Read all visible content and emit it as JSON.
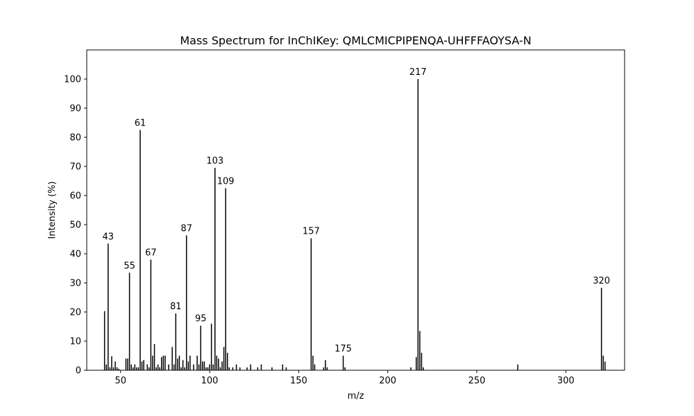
{
  "chart_data": {
    "type": "bar",
    "title": "Mass Spectrum for InChIKey: QMLCMICPIPENQA-UHFFFAOYSA-N",
    "xlabel": "m/z",
    "ylabel": "Intensity (%)",
    "xlim": [
      31,
      333
    ],
    "ylim": [
      0,
      110
    ],
    "xticks": [
      50,
      100,
      150,
      200,
      250,
      300
    ],
    "yticks": [
      0,
      10,
      20,
      30,
      40,
      50,
      60,
      70,
      80,
      90,
      100
    ],
    "grid": false,
    "bar_color": "#000000",
    "peaks": [
      {
        "mz": 41,
        "intensity": 20.3
      },
      {
        "mz": 42,
        "intensity": 2.0
      },
      {
        "mz": 43,
        "intensity": 43.5,
        "label": "43"
      },
      {
        "mz": 44,
        "intensity": 1.0
      },
      {
        "mz": 45,
        "intensity": 4.8
      },
      {
        "mz": 46,
        "intensity": 1.0
      },
      {
        "mz": 47,
        "intensity": 3.0
      },
      {
        "mz": 48,
        "intensity": 1.0
      },
      {
        "mz": 49,
        "intensity": 0.5
      },
      {
        "mz": 53,
        "intensity": 4.0
      },
      {
        "mz": 54,
        "intensity": 4.0
      },
      {
        "mz": 55,
        "intensity": 33.5,
        "label": "55"
      },
      {
        "mz": 56,
        "intensity": 2.0
      },
      {
        "mz": 57,
        "intensity": 1.0
      },
      {
        "mz": 58,
        "intensity": 2.0
      },
      {
        "mz": 59,
        "intensity": 1.0
      },
      {
        "mz": 60,
        "intensity": 1.0
      },
      {
        "mz": 61,
        "intensity": 82.5,
        "label": "61"
      },
      {
        "mz": 62,
        "intensity": 3.0
      },
      {
        "mz": 63,
        "intensity": 3.5
      },
      {
        "mz": 65,
        "intensity": 2.0
      },
      {
        "mz": 66,
        "intensity": 1.0
      },
      {
        "mz": 67,
        "intensity": 38.0,
        "label": "67"
      },
      {
        "mz": 68,
        "intensity": 5.0
      },
      {
        "mz": 69,
        "intensity": 9.0
      },
      {
        "mz": 70,
        "intensity": 1.0
      },
      {
        "mz": 71,
        "intensity": 2.0
      },
      {
        "mz": 72,
        "intensity": 1.0
      },
      {
        "mz": 73,
        "intensity": 4.5
      },
      {
        "mz": 74,
        "intensity": 5.0
      },
      {
        "mz": 75,
        "intensity": 5.0
      },
      {
        "mz": 77,
        "intensity": 2.0
      },
      {
        "mz": 79,
        "intensity": 8.0
      },
      {
        "mz": 80,
        "intensity": 2.0
      },
      {
        "mz": 81,
        "intensity": 19.5,
        "label": "81"
      },
      {
        "mz": 82,
        "intensity": 4.0
      },
      {
        "mz": 83,
        "intensity": 5.0
      },
      {
        "mz": 84,
        "intensity": 1.0
      },
      {
        "mz": 85,
        "intensity": 3.5
      },
      {
        "mz": 86,
        "intensity": 1.0
      },
      {
        "mz": 87,
        "intensity": 46.3,
        "label": "87"
      },
      {
        "mz": 88,
        "intensity": 3.0
      },
      {
        "mz": 89,
        "intensity": 5.0
      },
      {
        "mz": 91,
        "intensity": 2.0
      },
      {
        "mz": 93,
        "intensity": 5.0
      },
      {
        "mz": 94,
        "intensity": 2.0
      },
      {
        "mz": 95,
        "intensity": 15.3,
        "label": "95"
      },
      {
        "mz": 96,
        "intensity": 3.0
      },
      {
        "mz": 97,
        "intensity": 3.0
      },
      {
        "mz": 98,
        "intensity": 1.0
      },
      {
        "mz": 99,
        "intensity": 1.0
      },
      {
        "mz": 100,
        "intensity": 2.0
      },
      {
        "mz": 101,
        "intensity": 16.0
      },
      {
        "mz": 102,
        "intensity": 2.0
      },
      {
        "mz": 103,
        "intensity": 69.5,
        "label": "103"
      },
      {
        "mz": 104,
        "intensity": 5.0
      },
      {
        "mz": 105,
        "intensity": 4.0
      },
      {
        "mz": 106,
        "intensity": 1.0
      },
      {
        "mz": 107,
        "intensity": 3.0
      },
      {
        "mz": 108,
        "intensity": 8.0
      },
      {
        "mz": 109,
        "intensity": 62.5,
        "label": "109"
      },
      {
        "mz": 110,
        "intensity": 6.0
      },
      {
        "mz": 111,
        "intensity": 1.0
      },
      {
        "mz": 113,
        "intensity": 1.0
      },
      {
        "mz": 115,
        "intensity": 2.0
      },
      {
        "mz": 117,
        "intensity": 1.0
      },
      {
        "mz": 121,
        "intensity": 1.0
      },
      {
        "mz": 123,
        "intensity": 2.0
      },
      {
        "mz": 127,
        "intensity": 1.0
      },
      {
        "mz": 129,
        "intensity": 2.0
      },
      {
        "mz": 135,
        "intensity": 1.0
      },
      {
        "mz": 141,
        "intensity": 2.0
      },
      {
        "mz": 143,
        "intensity": 1.0
      },
      {
        "mz": 157,
        "intensity": 45.3,
        "label": "157"
      },
      {
        "mz": 158,
        "intensity": 5.0
      },
      {
        "mz": 159,
        "intensity": 2.0
      },
      {
        "mz": 164,
        "intensity": 1.0
      },
      {
        "mz": 165,
        "intensity": 3.5
      },
      {
        "mz": 166,
        "intensity": 1.0
      },
      {
        "mz": 175,
        "intensity": 5.0,
        "label": "175"
      },
      {
        "mz": 176,
        "intensity": 1.0
      },
      {
        "mz": 213,
        "intensity": 1.0
      },
      {
        "mz": 216,
        "intensity": 4.5
      },
      {
        "mz": 217,
        "intensity": 100.0,
        "label": "217"
      },
      {
        "mz": 218,
        "intensity": 13.5
      },
      {
        "mz": 219,
        "intensity": 6.0
      },
      {
        "mz": 220,
        "intensity": 1.0
      },
      {
        "mz": 273,
        "intensity": 2.0
      },
      {
        "mz": 320,
        "intensity": 28.3,
        "label": "320"
      },
      {
        "mz": 321,
        "intensity": 5.0
      },
      {
        "mz": 322,
        "intensity": 3.0
      }
    ]
  }
}
